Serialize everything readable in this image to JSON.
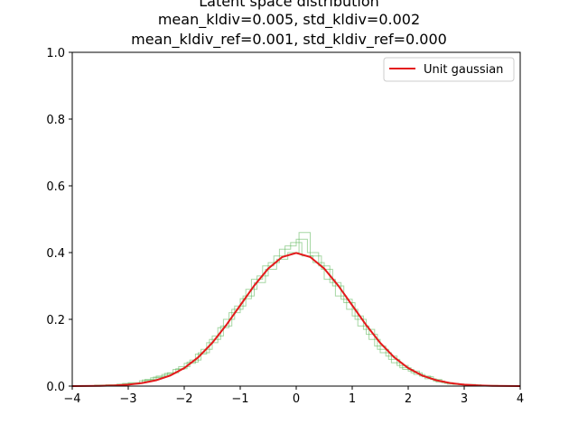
{
  "chart_data": {
    "type": "line",
    "title_lines": [
      "Latent space distribution",
      "mean_kldiv=0.005, std_kldiv=0.002",
      "mean_kldiv_ref=0.001, std_kldiv_ref=0.000"
    ],
    "xlabel": "",
    "ylabel": "",
    "xlim": [
      -4,
      4
    ],
    "ylim": [
      0,
      1.0
    ],
    "x_ticks": [
      -4,
      -3,
      -2,
      -1,
      0,
      1,
      2,
      3,
      4
    ],
    "x_tick_labels": [
      "−4",
      "−3",
      "−2",
      "−1",
      "0",
      "1",
      "2",
      "3",
      "4"
    ],
    "y_ticks": [
      0.0,
      0.2,
      0.4,
      0.6,
      0.8,
      1.0
    ],
    "y_tick_labels": [
      "0.0",
      "0.2",
      "0.4",
      "0.6",
      "0.8",
      "1.0"
    ],
    "grid": false,
    "legend": {
      "placement": "top-right",
      "entries": [
        "Unit gaussian"
      ]
    },
    "series": [
      {
        "name": "Unit gaussian",
        "kind": "line",
        "color": "#e41a1c",
        "x": [
          -4.0,
          -3.75,
          -3.5,
          -3.25,
          -3.0,
          -2.75,
          -2.5,
          -2.25,
          -2.0,
          -1.75,
          -1.5,
          -1.25,
          -1.0,
          -0.75,
          -0.5,
          -0.25,
          0.0,
          0.25,
          0.5,
          0.75,
          1.0,
          1.25,
          1.5,
          1.75,
          2.0,
          2.25,
          2.5,
          2.75,
          3.0,
          3.25,
          3.5,
          3.75,
          4.0
        ],
        "y": [
          0.0001,
          0.0004,
          0.0009,
          0.002,
          0.0044,
          0.0091,
          0.0175,
          0.0317,
          0.054,
          0.0863,
          0.1295,
          0.1826,
          0.242,
          0.3011,
          0.3521,
          0.3867,
          0.3989,
          0.3867,
          0.3521,
          0.3011,
          0.242,
          0.1826,
          0.1295,
          0.0863,
          0.054,
          0.0317,
          0.0175,
          0.0091,
          0.0044,
          0.002,
          0.0009,
          0.0004,
          0.0001
        ]
      },
      {
        "kind": "step-histogram",
        "color": "#4daf4a",
        "bin_edges": [
          -3.6,
          -3.2,
          -2.8,
          -2.6,
          -2.4,
          -2.2,
          -2.0,
          -1.8,
          -1.6,
          -1.4,
          -1.2,
          -1.0,
          -0.8,
          -0.6,
          -0.4,
          -0.2,
          0.0,
          0.2,
          0.4,
          0.6,
          0.8,
          1.0,
          1.2,
          1.4,
          1.6,
          1.8,
          2.0,
          2.2,
          2.4,
          2.6,
          2.8,
          3.2,
          3.6
        ],
        "values": [
          0.003,
          0.006,
          0.016,
          0.025,
          0.035,
          0.05,
          0.068,
          0.096,
          0.13,
          0.175,
          0.22,
          0.262,
          0.32,
          0.36,
          0.39,
          0.42,
          0.44,
          0.4,
          0.36,
          0.31,
          0.26,
          0.21,
          0.17,
          0.12,
          0.09,
          0.062,
          0.045,
          0.03,
          0.02,
          0.01,
          0.005,
          0.002
        ]
      },
      {
        "kind": "step-histogram",
        "color": "#4daf4a",
        "bin_edges": [
          -3.4,
          -3.0,
          -2.7,
          -2.5,
          -2.3,
          -2.1,
          -1.9,
          -1.7,
          -1.5,
          -1.3,
          -1.1,
          -0.9,
          -0.7,
          -0.5,
          -0.3,
          -0.1,
          0.1,
          0.3,
          0.5,
          0.7,
          0.9,
          1.1,
          1.3,
          1.5,
          1.7,
          1.9,
          2.1,
          2.3,
          2.5,
          2.7,
          3.0,
          3.4
        ],
        "values": [
          0.004,
          0.01,
          0.02,
          0.03,
          0.04,
          0.058,
          0.078,
          0.11,
          0.15,
          0.2,
          0.24,
          0.29,
          0.33,
          0.37,
          0.41,
          0.43,
          0.39,
          0.37,
          0.32,
          0.27,
          0.23,
          0.18,
          0.14,
          0.1,
          0.07,
          0.05,
          0.035,
          0.022,
          0.012,
          0.006,
          0.002
        ]
      },
      {
        "kind": "step-histogram",
        "color": "#4daf4a",
        "bin_edges": [
          -3.5,
          -3.1,
          -2.75,
          -2.55,
          -2.35,
          -2.15,
          -1.95,
          -1.75,
          -1.55,
          -1.35,
          -1.15,
          -0.95,
          -0.75,
          -0.55,
          -0.35,
          -0.15,
          0.05,
          0.25,
          0.45,
          0.65,
          0.85,
          1.05,
          1.25,
          1.45,
          1.65,
          1.85,
          2.05,
          2.25,
          2.45,
          2.65,
          2.9,
          3.3,
          3.7
        ],
        "values": [
          0.002,
          0.008,
          0.018,
          0.027,
          0.038,
          0.052,
          0.072,
          0.1,
          0.14,
          0.18,
          0.23,
          0.27,
          0.31,
          0.35,
          0.38,
          0.4,
          0.46,
          0.39,
          0.35,
          0.3,
          0.25,
          0.2,
          0.155,
          0.11,
          0.08,
          0.055,
          0.04,
          0.028,
          0.015,
          0.008,
          0.004,
          0.001
        ]
      }
    ]
  }
}
